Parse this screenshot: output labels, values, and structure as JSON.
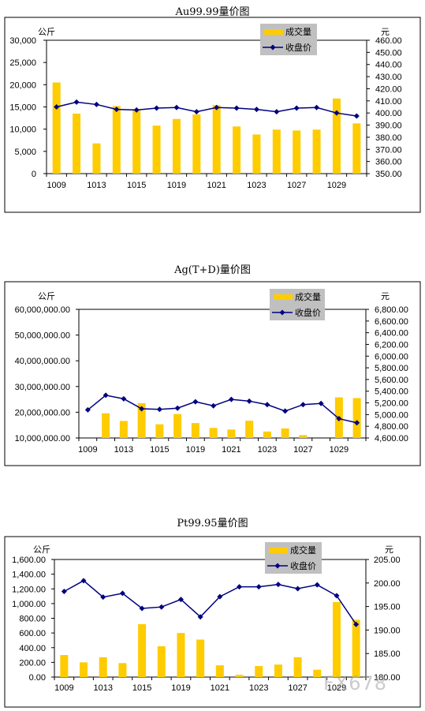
{
  "colors": {
    "bar": "#FFCC00",
    "line": "#000080",
    "legend_bg": "#C0C0C0"
  },
  "watermark": "FX678",
  "chart_data": [
    {
      "type": "bar+line",
      "title": "Au99.99量价图",
      "left_unit": "公斤",
      "right_unit": "元",
      "legend": {
        "bar": "成交量",
        "line": "收盘价"
      },
      "categories": [
        "1009",
        "1010",
        "1013",
        "1014",
        "1015",
        "1018",
        "1019",
        "1020",
        "1021",
        "1022",
        "1023",
        "1026",
        "1027",
        "1028",
        "1029",
        "1030"
      ],
      "x_tick_labels": [
        "1009",
        "1013",
        "1015",
        "1019",
        "1021",
        "1023",
        "1027",
        "1029"
      ],
      "bar_values": [
        20500,
        13500,
        6800,
        15200,
        14500,
        10800,
        12300,
        13300,
        15400,
        10600,
        8800,
        9900,
        9700,
        9900,
        16900,
        11300
      ],
      "line_values": [
        405,
        409,
        407,
        403,
        402.5,
        404,
        404.5,
        401,
        404.5,
        404,
        403,
        401,
        404,
        404.5,
        400,
        397.5
      ],
      "left_ylim": [
        0,
        30000
      ],
      "left_ticks": [
        "0",
        "5,000",
        "10,000",
        "15,000",
        "20,000",
        "25,000",
        "30,000"
      ],
      "right_ylim": [
        350,
        460
      ],
      "right_ticks": [
        "350.00",
        "360.00",
        "370.00",
        "380.00",
        "390.00",
        "400.00",
        "410.00",
        "420.00",
        "430.00",
        "440.00",
        "450.00",
        "460.00"
      ]
    },
    {
      "type": "bar+line",
      "title": "Ag(T+D)量价图",
      "left_unit": "公斤",
      "right_unit": "元",
      "legend": {
        "bar": "成交量",
        "line": "收盘价"
      },
      "categories": [
        "1009",
        "1010",
        "1013",
        "1014",
        "1015",
        "1018",
        "1019",
        "1020",
        "1021",
        "1022",
        "1023",
        "1026",
        "1027",
        "1028",
        "1029",
        "1030"
      ],
      "x_tick_labels": [
        "1009",
        "1013",
        "1015",
        "1019",
        "1021",
        "1023",
        "1027",
        "1029"
      ],
      "bar_values": [
        9800000,
        19600000,
        16600000,
        23500000,
        15300000,
        19300000,
        15800000,
        13900000,
        13300000,
        16700000,
        12500000,
        13700000,
        11100000,
        10000000,
        25800000,
        25500000
      ],
      "line_values": [
        5080,
        5330,
        5270,
        5100,
        5090,
        5110,
        5220,
        5150,
        5260,
        5230,
        5170,
        5060,
        5170,
        5190,
        4930,
        4860
      ],
      "left_ylim": [
        10000000,
        60000000
      ],
      "left_ticks": [
        "10,000,000.00",
        "20,000,000.00",
        "30,000,000.00",
        "40,000,000.00",
        "50,000,000.00",
        "60,000,000.00"
      ],
      "right_ylim": [
        4600,
        6800
      ],
      "right_ticks": [
        "4,600.00",
        "4,800.00",
        "5,000.00",
        "5,200.00",
        "5,400.00",
        "5,600.00",
        "5,800.00",
        "6,000.00",
        "6,200.00",
        "6,400.00",
        "6,600.00",
        "6,800.00"
      ]
    },
    {
      "type": "bar+line",
      "title": "Pt99.95量价图",
      "left_unit": "公斤",
      "right_unit": "元",
      "legend": {
        "bar": "成交量",
        "line": "收盘价"
      },
      "categories": [
        "1009",
        "1010",
        "1013",
        "1014",
        "1015",
        "1018",
        "1019",
        "1020",
        "1021",
        "1022",
        "1023",
        "1026",
        "1027",
        "1028",
        "1029",
        "1030"
      ],
      "x_tick_labels": [
        "1009",
        "1013",
        "1015",
        "1019",
        "1021",
        "1023",
        "1027",
        "1029"
      ],
      "bar_values": [
        300,
        200,
        270,
        190,
        720,
        420,
        600,
        510,
        160,
        30,
        150,
        170,
        270,
        100,
        1020,
        780
      ],
      "line_values": [
        198.2,
        200.5,
        197,
        197.8,
        194.6,
        194.9,
        196.5,
        192.8,
        197.1,
        199.2,
        199.2,
        199.7,
        198.8,
        199.6,
        197.3,
        191.2
      ],
      "left_ylim": [
        0,
        1600
      ],
      "left_ticks": [
        "0.00",
        "200.00",
        "400.00",
        "600.00",
        "800.00",
        "1,000.00",
        "1,200.00",
        "1,400.00",
        "1,600.00"
      ],
      "right_ylim": [
        180,
        205
      ],
      "right_ticks": [
        "180.00",
        "185.00",
        "190.00",
        "195.00",
        "200.00",
        "205.00"
      ]
    }
  ]
}
